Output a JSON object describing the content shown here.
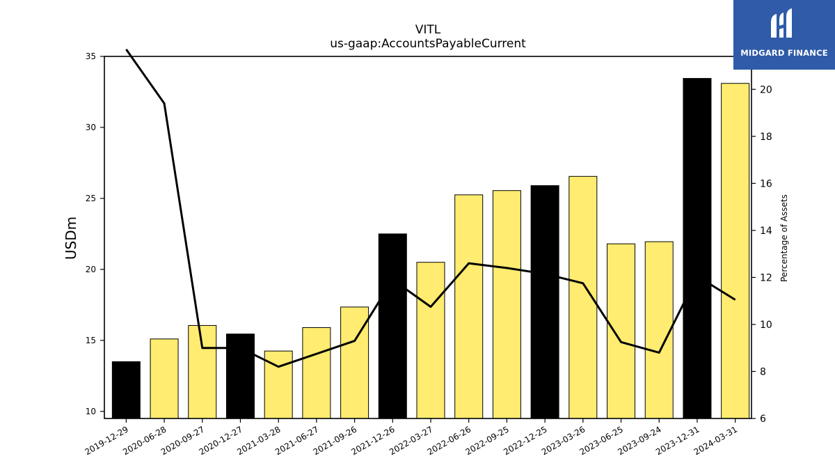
{
  "chart_data": {
    "type": "bar+line",
    "title": "VITL",
    "subtitle": "us-gaap:AccountsPayableCurrent",
    "ylabel": "USDm",
    "y2label": "Percentage of Assets",
    "ylim": [
      9.5,
      35
    ],
    "y2lim": [
      6,
      21.4
    ],
    "yticks": [
      10,
      15,
      20,
      25,
      30,
      35
    ],
    "y2ticks": [
      6,
      8,
      10,
      12,
      14,
      16,
      18,
      20
    ],
    "categories": [
      "2019-12-29",
      "2020-06-28",
      "2020-09-27",
      "2020-12-27",
      "2021-03-28",
      "2021-06-27",
      "2021-09-26",
      "2021-12-26",
      "2022-03-27",
      "2022-06-26",
      "2022-09-25",
      "2022-12-25",
      "2023-03-26",
      "2023-06-25",
      "2023-09-24",
      "2023-12-31",
      "2024-03-31"
    ],
    "bars": [
      13.5,
      15.1,
      16.05,
      15.45,
      14.25,
      15.9,
      17.35,
      22.5,
      20.5,
      25.25,
      25.55,
      25.9,
      26.55,
      21.8,
      21.95,
      33.45,
      33.1
    ],
    "bar_highlight": [
      true,
      false,
      false,
      true,
      false,
      false,
      false,
      true,
      false,
      false,
      false,
      true,
      false,
      false,
      false,
      true,
      false
    ],
    "line": [
      21.7,
      19.4,
      9.0,
      9.0,
      8.2,
      8.75,
      9.3,
      11.9,
      10.75,
      12.6,
      12.4,
      12.15,
      11.75,
      9.25,
      8.8,
      12.05,
      11.05
    ],
    "colors": {
      "bar": "#ffec70",
      "bar_highlight": "#000000",
      "line": "#000000",
      "axis": "#000000"
    }
  },
  "logo": {
    "text": "MIDGARD FINANCE",
    "background": "#2f5ba8"
  }
}
